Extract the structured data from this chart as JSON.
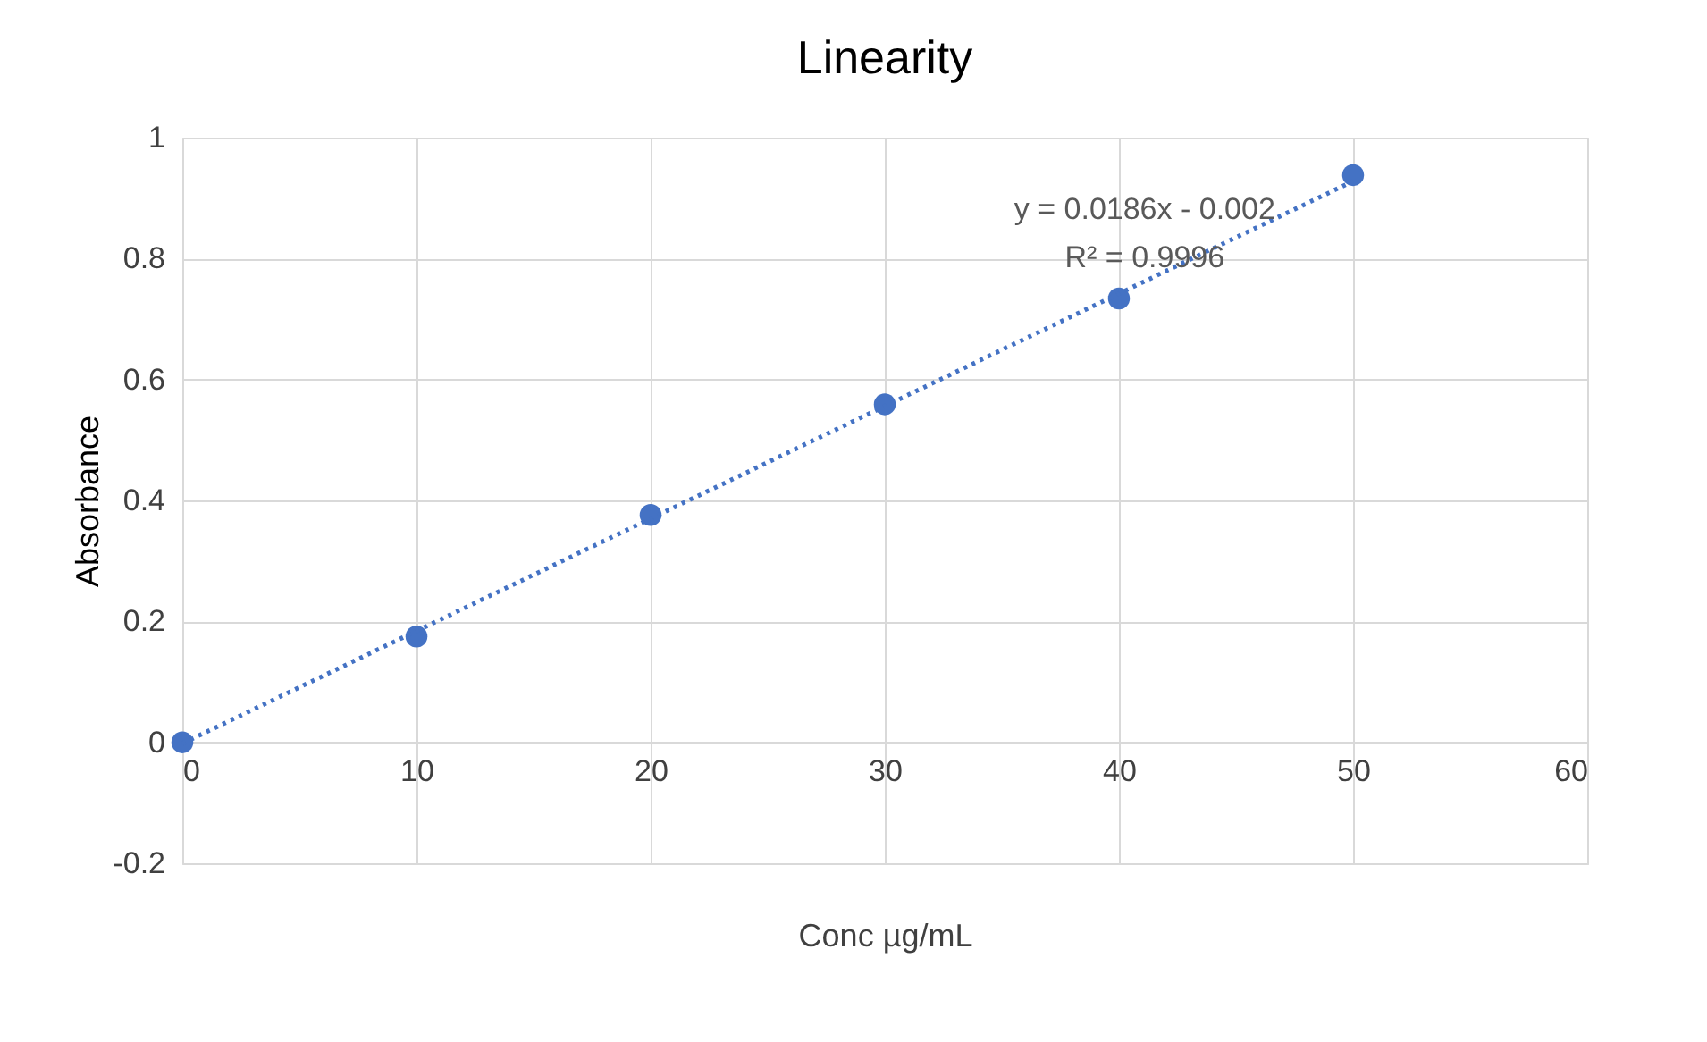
{
  "chart_data": {
    "type": "scatter",
    "title": "Linearity",
    "xlabel": "Conc µg/mL",
    "ylabel": "Absorbance",
    "x": [
      0,
      10,
      20,
      30,
      40,
      50
    ],
    "series": [
      {
        "color": "#4472c4",
        "values": [
          0,
          0.175,
          0.376,
          0.559,
          0.734,
          0.938
        ],
        "marker": "circle"
      },
      {
        "type": "line",
        "color": "#4472c4",
        "x": [
          0,
          50
        ],
        "values": [
          -0.002,
          0.928
        ],
        "line_style": "dotted"
      }
    ],
    "annotations": [
      "y = 0.0186x - 0.002",
      "R² = 0.9996"
    ],
    "xlim": [
      0,
      60
    ],
    "xticks": [
      0,
      10,
      20,
      30,
      40,
      50,
      60
    ],
    "ylim": [
      -0.2,
      1
    ],
    "yticks": [
      -0.2,
      0,
      0.2,
      0.4,
      0.6,
      0.8,
      1
    ],
    "grid": true
  }
}
